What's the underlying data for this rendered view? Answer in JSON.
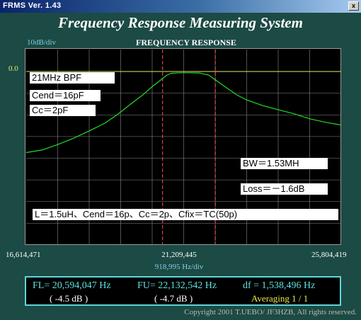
{
  "window": {
    "title": "FRMS  Ver. 1.43",
    "close_glyph": "x"
  },
  "app_title": "Frequency Response Measuring System",
  "plot": {
    "scale_label": "10dB/div",
    "title": "FREQUENCY RESPONSE",
    "ref_label": "0.0",
    "x_start": "16,614,471",
    "x_center": "21,209,445",
    "x_end": "25,804,419",
    "x_div": "918,995  Hz/div"
  },
  "annotations": {
    "name": "21MHz BPF",
    "cend": "Cend＝16pF",
    "cc": "Cc＝2pF",
    "bw": "BW＝1.53MH",
    "loss": "Loss＝－1.6dB",
    "params": "L＝1.5uH、Cend＝16p、Cc＝2p、Cfix＝TC(50p)"
  },
  "status": {
    "fl": "FL= 20,594,047  Hz",
    "fl_db": "( -4.5 dB )",
    "fu": "FU= 22,132,542  Hz",
    "fu_db": "( -4.7 dB )",
    "df": "df = 1,538,496  Hz",
    "averaging": "Averaging   1 / 1"
  },
  "copyright": "Copyright 2001 T.UEBO/ JF3HZB, All rights reserved.",
  "colors": {
    "trace": "#22dd22",
    "grid": "#8a8a8a",
    "ref_line": "#e8e86a",
    "cutoff_marker": "#ff5050",
    "status_text": "#5fe0e0",
    "averaging": "#e8e84a"
  },
  "chart_data": {
    "type": "line",
    "title": "FREQUENCY RESPONSE",
    "xlabel": "918,995  Hz/div",
    "ylabel": "10dB/div",
    "xlim": [
      16614471,
      25804419
    ],
    "ylim": [
      -80,
      0
    ],
    "grid": true,
    "series": [
      {
        "name": "21MHz BPF",
        "x": [
          16614471,
          17073969,
          17533466,
          17992964,
          18452462,
          18911960,
          19279558,
          19647155,
          20014753,
          20290452,
          20566150,
          20703999,
          20841848,
          21117546,
          21393244,
          21668942,
          21944640,
          22220339,
          22496037,
          22771736,
          23047434,
          23506932,
          23966430,
          24425928,
          24885425,
          25344923,
          25804419
        ],
        "y": [
          -37.4,
          -36.2,
          -33.7,
          -30.8,
          -27.4,
          -23.8,
          -19.8,
          -15.2,
          -10.8,
          -7.0,
          -3.6,
          -1.8,
          -0.8,
          -0.6,
          -0.6,
          -0.7,
          -1.7,
          -4.8,
          -7.9,
          -10.9,
          -13.1,
          -15.7,
          -17.6,
          -19.5,
          -21.8,
          -23.4,
          -24.7
        ]
      }
    ],
    "markers": {
      "fl": 20594047,
      "fu": 22132542
    }
  }
}
